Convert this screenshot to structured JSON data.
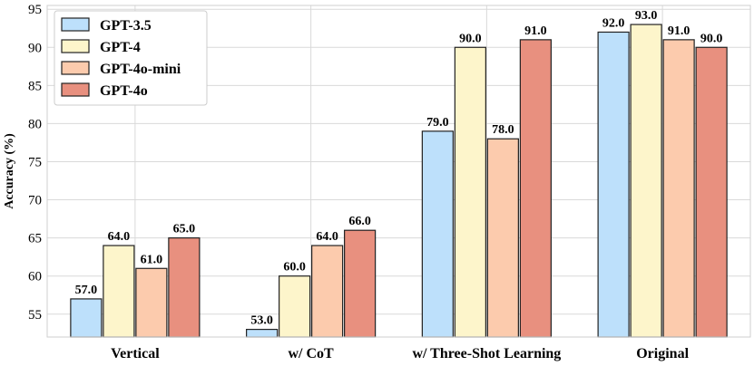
{
  "chart_data": {
    "type": "bar",
    "title": "",
    "xlabel": "",
    "ylabel": "Accuracy (%)",
    "ylim": [
      52,
      95.5
    ],
    "yticks": [
      55,
      60,
      65,
      70,
      75,
      80,
      85,
      90,
      95
    ],
    "grid": true,
    "legend_position": "top-left",
    "categories": [
      "Vertical",
      "w/ CoT",
      "w/ Three-Shot Learning",
      "Original"
    ],
    "series": [
      {
        "name": "GPT-3.5",
        "color": "#bde0fb",
        "values": [
          57.0,
          53.0,
          79.0,
          92.0
        ]
      },
      {
        "name": "GPT-4",
        "color": "#fdf5cb",
        "values": [
          64.0,
          60.0,
          90.0,
          93.0
        ]
      },
      {
        "name": "GPT-4o-mini",
        "color": "#fccbad",
        "values": [
          61.0,
          64.0,
          78.0,
          91.0
        ]
      },
      {
        "name": "GPT-4o",
        "color": "#e8907f",
        "values": [
          65.0,
          66.0,
          91.0,
          90.0
        ]
      }
    ]
  }
}
